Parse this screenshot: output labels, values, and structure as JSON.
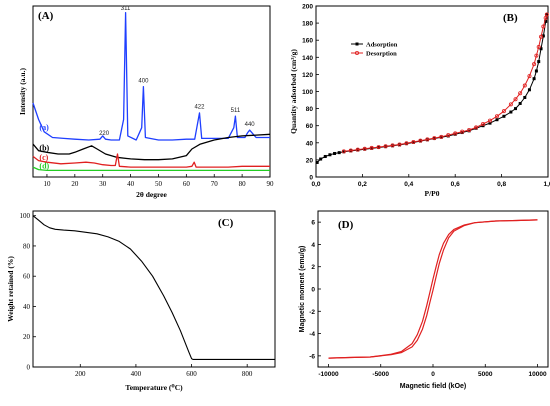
{
  "chart_data": [
    {
      "id": "A",
      "type": "line",
      "panel_label": "(A)",
      "xlabel": "2θ degree",
      "ylabel": "Intensity (a.u.)",
      "xlim": [
        5,
        90
      ],
      "xticks": [
        10,
        20,
        30,
        40,
        50,
        60,
        70,
        80,
        90
      ],
      "series": [
        {
          "name": "(a)",
          "color": "#1f3fff",
          "x": [
            5,
            7,
            9,
            12,
            16,
            20,
            25,
            29,
            30,
            31,
            33,
            36,
            37.5,
            38.2,
            39,
            42,
            44,
            44.6,
            45.3,
            50,
            55,
            60,
            63,
            64.7,
            65.5,
            70,
            75,
            77,
            77.6,
            78.3,
            81,
            82,
            82.7,
            85,
            90
          ],
          "y": [
            -0.1,
            -0.3,
            -0.45,
            -0.52,
            -0.53,
            -0.54,
            -0.55,
            -0.54,
            -0.5,
            -0.54,
            -0.55,
            -0.55,
            -0.3,
            1.0,
            -0.5,
            -0.55,
            -0.4,
            0.1,
            -0.52,
            -0.55,
            -0.55,
            -0.54,
            -0.54,
            -0.22,
            -0.53,
            -0.53,
            -0.53,
            -0.4,
            -0.26,
            -0.52,
            -0.52,
            -0.46,
            -0.43,
            -0.52,
            -0.52
          ]
        },
        {
          "name": "(b)",
          "color": "#000000",
          "x": [
            5,
            7,
            10,
            14,
            18,
            20,
            23,
            26,
            28,
            31,
            35,
            40,
            45,
            50,
            55,
            60,
            62,
            65,
            70,
            75,
            80,
            85,
            90
          ],
          "y": [
            -0.6,
            -0.68,
            -0.7,
            -0.72,
            -0.72,
            -0.7,
            -0.66,
            -0.62,
            -0.66,
            -0.72,
            -0.76,
            -0.78,
            -0.79,
            -0.79,
            -0.78,
            -0.74,
            -0.66,
            -0.6,
            -0.55,
            -0.52,
            -0.5,
            -0.49,
            -0.48
          ]
        },
        {
          "name": "(c)",
          "color": "#e02020",
          "x": [
            5,
            7,
            10,
            15,
            20,
            24,
            27,
            30,
            33,
            34.5,
            35.3,
            36,
            40,
            45,
            50,
            55,
            60,
            62,
            62.8,
            63.5,
            70,
            75,
            80,
            85,
            90
          ],
          "y": [
            -0.75,
            -0.8,
            -0.82,
            -0.84,
            -0.83,
            -0.82,
            -0.83,
            -0.85,
            -0.86,
            -0.86,
            -0.72,
            -0.87,
            -0.88,
            -0.88,
            -0.88,
            -0.88,
            -0.88,
            -0.87,
            -0.82,
            -0.88,
            -0.88,
            -0.88,
            -0.87,
            -0.87,
            -0.87
          ]
        },
        {
          "name": "(d)",
          "color": "#22cc22",
          "x": [
            5,
            7,
            10,
            15,
            20,
            25,
            30,
            35,
            40,
            45,
            50,
            55,
            60,
            65,
            70,
            75,
            80,
            85,
            90
          ],
          "y": [
            -0.88,
            -0.91,
            -0.92,
            -0.92,
            -0.92,
            -0.92,
            -0.92,
            -0.92,
            -0.92,
            -0.92,
            -0.92,
            -0.92,
            -0.92,
            -0.92,
            -0.92,
            -0.92,
            -0.92,
            -0.92,
            -0.92
          ]
        }
      ],
      "peak_labels": [
        {
          "text": "311",
          "x": 38.2,
          "y": 1.02
        },
        {
          "text": "220",
          "x": 30.5,
          "y": -0.5
        },
        {
          "text": "400",
          "x": 44.6,
          "y": 0.14
        },
        {
          "text": "422",
          "x": 64.7,
          "y": -0.18
        },
        {
          "text": "511",
          "x": 77.6,
          "y": -0.22
        },
        {
          "text": "440",
          "x": 82.7,
          "y": -0.39
        }
      ]
    },
    {
      "id": "B",
      "type": "line",
      "panel_label": "(B)",
      "xlabel": "P/P0",
      "ylabel": "Quantity adsorbed (cm³/g)",
      "xlim": [
        0,
        1.0
      ],
      "ylim": [
        0,
        200
      ],
      "xticks": [
        "0,0",
        "0,2",
        "0,4",
        "0,6",
        "0,8",
        "1,0"
      ],
      "yticks": [
        0,
        20,
        40,
        60,
        80,
        100,
        120,
        140,
        160,
        180,
        200
      ],
      "legend_position": "top-left",
      "series": [
        {
          "name": "Adsorption",
          "color": "#000000",
          "marker": "square",
          "x": [
            0.005,
            0.02,
            0.04,
            0.06,
            0.08,
            0.1,
            0.12,
            0.15,
            0.18,
            0.21,
            0.24,
            0.27,
            0.3,
            0.33,
            0.36,
            0.39,
            0.42,
            0.45,
            0.48,
            0.51,
            0.54,
            0.57,
            0.6,
            0.63,
            0.66,
            0.69,
            0.72,
            0.75,
            0.78,
            0.81,
            0.84,
            0.86,
            0.88,
            0.9,
            0.92,
            0.94,
            0.95,
            0.96,
            0.97,
            0.98,
            0.99,
            0.995
          ],
          "y": [
            17,
            21,
            24,
            26,
            27.5,
            28.5,
            29.5,
            30.5,
            31.5,
            32.5,
            33.5,
            34.5,
            35.5,
            36.5,
            37.5,
            39,
            40.5,
            42,
            43.5,
            45,
            46.5,
            48,
            50,
            52,
            54,
            57,
            60,
            63,
            67,
            71,
            76,
            80,
            86,
            93,
            102,
            115,
            124,
            135,
            150,
            165,
            182,
            190
          ]
        },
        {
          "name": "Desorption",
          "color": "#e02020",
          "marker": "circle",
          "x": [
            0.995,
            0.99,
            0.98,
            0.97,
            0.96,
            0.95,
            0.94,
            0.92,
            0.9,
            0.88,
            0.86,
            0.84,
            0.81,
            0.78,
            0.75,
            0.72,
            0.69,
            0.66,
            0.63,
            0.6,
            0.57,
            0.54,
            0.51,
            0.48,
            0.45,
            0.42,
            0.39,
            0.36,
            0.33,
            0.3,
            0.27,
            0.24,
            0.21,
            0.18,
            0.15,
            0.12
          ],
          "y": [
            190,
            186,
            176,
            164,
            152,
            142,
            132,
            118,
            107,
            98,
            91,
            85,
            77,
            71,
            66,
            62,
            58,
            55,
            53,
            51,
            49,
            47,
            45.5,
            44,
            42.5,
            41,
            39.5,
            38,
            37,
            36,
            35,
            34,
            33,
            32,
            31,
            30
          ]
        }
      ]
    },
    {
      "id": "C",
      "type": "line",
      "panel_label": "(C)",
      "xlabel": "Temperature (⁰C)",
      "ylabel": "Weight retained (%)",
      "xlim": [
        30,
        900
      ],
      "ylim": [
        0,
        100
      ],
      "xticks": [
        200,
        400,
        600,
        800
      ],
      "yticks": [
        0,
        20,
        40,
        60,
        80,
        100
      ],
      "series": [
        {
          "name": "",
          "color": "#000000",
          "x": [
            30,
            50,
            70,
            90,
            110,
            140,
            180,
            220,
            260,
            300,
            340,
            380,
            420,
            460,
            500,
            530,
            560,
            590,
            600,
            605,
            610,
            640,
            700,
            800,
            900
          ],
          "y": [
            100,
            97,
            94,
            92,
            91,
            90.5,
            90,
            89,
            88,
            86,
            83,
            78,
            70,
            60,
            47,
            36,
            24,
            10,
            5.5,
            5,
            5,
            5,
            5,
            5,
            5
          ]
        }
      ]
    },
    {
      "id": "D",
      "type": "line",
      "panel_label": "(D)",
      "xlabel": "Magnetic field (kOe)",
      "ylabel": "Magnetic moment (emu/g)",
      "xlim": [
        -11000,
        11000
      ],
      "ylim": [
        -7,
        7
      ],
      "xticks": [
        -10000,
        -5000,
        0,
        5000,
        10000
      ],
      "yticks": [
        -6,
        -4,
        -2,
        0,
        2,
        4,
        6
      ],
      "series": [
        {
          "name": "",
          "color": "#e02020",
          "x": [
            -10000,
            -8000,
            -6000,
            -4000,
            -3000,
            -2000,
            -1500,
            -1000,
            -600,
            -300,
            0,
            300,
            600,
            1000,
            1500,
            2000,
            3000,
            4000,
            6000,
            8000,
            10000
          ],
          "y": [
            -6.2,
            -6.15,
            -6.1,
            -5.9,
            -5.7,
            -5.2,
            -4.6,
            -3.6,
            -2.4,
            -1.2,
            -0.1,
            1.1,
            2.3,
            3.5,
            4.6,
            5.2,
            5.7,
            5.95,
            6.1,
            6.15,
            6.2
          ]
        },
        {
          "name": "",
          "color": "#e02020",
          "x": [
            10000,
            8000,
            6000,
            4000,
            3000,
            2000,
            1500,
            1000,
            600,
            300,
            0,
            -300,
            -600,
            -1000,
            -1500,
            -2000,
            -3000,
            -4000,
            -6000,
            -8000,
            -10000
          ],
          "y": [
            6.2,
            6.15,
            6.1,
            5.95,
            5.75,
            5.35,
            4.9,
            4.1,
            3.1,
            2.0,
            0.9,
            -0.3,
            -1.5,
            -2.9,
            -4.1,
            -4.9,
            -5.6,
            -5.85,
            -6.1,
            -6.15,
            -6.2
          ]
        }
      ]
    }
  ]
}
